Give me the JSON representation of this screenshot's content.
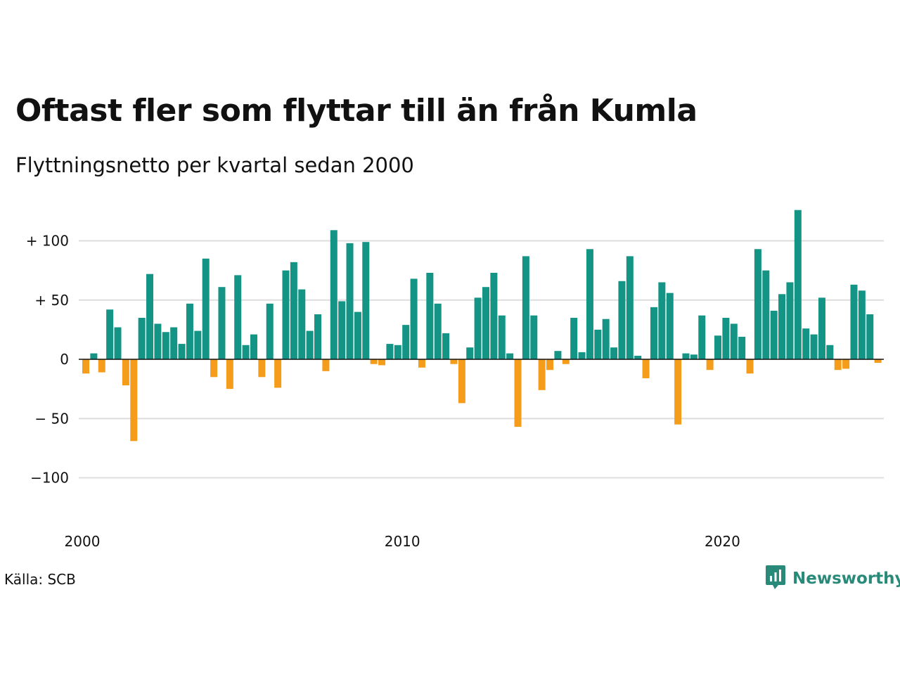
{
  "title": "Oftast fler som flyttar till än från Kumla",
  "subtitle": "Flyttningsnetto per kvartal sedan 2000",
  "source": "Källa: SCB",
  "brand": {
    "name": "Newsworthy",
    "icon": "chart-bubble-icon",
    "color": "#2a8a79"
  },
  "colors": {
    "positive": "#139485",
    "negative": "#f59c1a",
    "grid": "#dddddd",
    "zero_line": "#111111"
  },
  "chart_data": {
    "type": "bar",
    "title": "Oftast fler som flyttar till än från Kumla",
    "subtitle": "Flyttningsnetto per kvartal sedan 2000",
    "x_start": "2000 Q1",
    "frequency": "quarterly",
    "ylim": [
      -135,
      130
    ],
    "y_ticks": [
      {
        "value": 100,
        "label": "+ 100"
      },
      {
        "value": 50,
        "label": "+  50"
      },
      {
        "value": 0,
        "label": "0"
      },
      {
        "value": -50,
        "label": "− 50"
      },
      {
        "value": -100,
        "label": "−100"
      }
    ],
    "x_ticks": [
      {
        "index": 0,
        "label": "2000"
      },
      {
        "index": 40,
        "label": "2010"
      },
      {
        "index": 80,
        "label": "2020"
      }
    ],
    "grid": true,
    "legend": false,
    "values": [
      -12,
      5,
      -11,
      42,
      27,
      -22,
      -69,
      35,
      72,
      30,
      23,
      27,
      13,
      47,
      24,
      85,
      -15,
      61,
      -25,
      71,
      12,
      21,
      -15,
      47,
      -24,
      75,
      82,
      59,
      24,
      38,
      -10,
      109,
      49,
      98,
      40,
      99,
      -4,
      -5,
      13,
      12,
      29,
      68,
      -7,
      73,
      47,
      22,
      -4,
      -37,
      10,
      52,
      61,
      73,
      37,
      5,
      -57,
      87,
      37,
      -26,
      -9,
      7,
      -4,
      35,
      6,
      93,
      25,
      34,
      10,
      66,
      87,
      3,
      -16,
      44,
      65,
      56,
      -55,
      5,
      4,
      37,
      -9,
      20,
      35,
      30,
      19,
      -12,
      93,
      75,
      41,
      55,
      65,
      126,
      26,
      21,
      52,
      12,
      -9,
      -8,
      63,
      58,
      38,
      -3
    ]
  }
}
